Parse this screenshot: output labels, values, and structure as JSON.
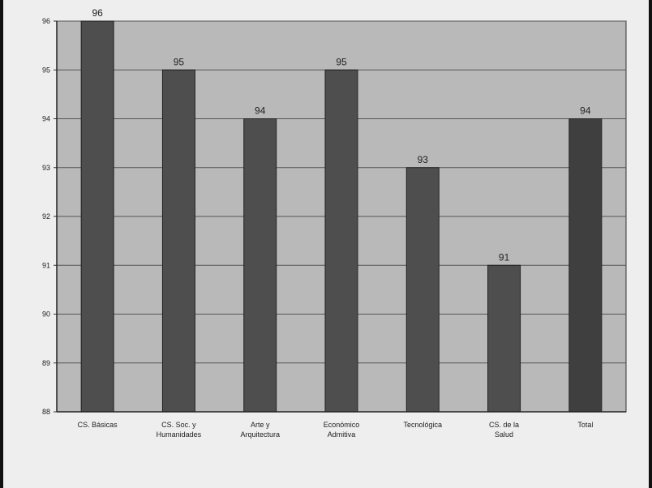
{
  "chart_data": {
    "type": "bar",
    "title": "",
    "xlabel": "",
    "ylabel": "",
    "categories": [
      [
        "CS. Básicas"
      ],
      [
        "CS. Soc. y",
        "Humanidades"
      ],
      [
        "Arte y",
        "Arquitectura"
      ],
      [
        "Económico",
        "Admitiva"
      ],
      [
        "Tecnológica"
      ],
      [
        "CS. de la",
        "Salud"
      ],
      [
        "Total"
      ]
    ],
    "values": [
      96,
      95,
      94,
      95,
      93,
      91,
      94
    ],
    "data_labels": [
      "96",
      "95",
      "94",
      "95",
      "93",
      "91",
      "94"
    ],
    "y_ticks": [
      "88",
      "89",
      "90",
      "91",
      "92",
      "93",
      "94",
      "95",
      "96"
    ],
    "ylim": [
      88,
      96
    ],
    "grid": true,
    "legend": "none",
    "colors": {
      "plot_background": "#b9b9b9",
      "bar": "#4e4e4e",
      "bar_total": "#3f3f3f",
      "grid": "#555555"
    }
  }
}
